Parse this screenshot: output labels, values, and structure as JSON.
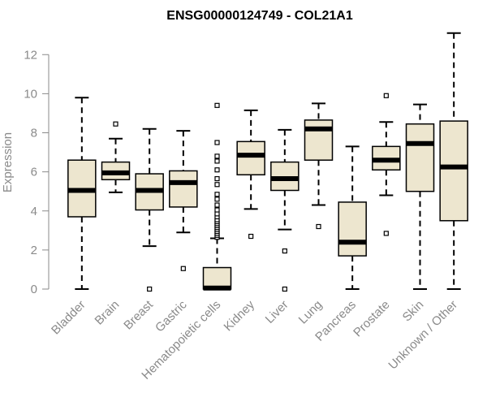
{
  "chart_data": {
    "type": "box",
    "title": "ENSG00000124749 - COL21A1",
    "xlabel": "",
    "ylabel": "Expression",
    "ylim": [
      0,
      13
    ],
    "yticks": [
      0,
      2,
      4,
      6,
      8,
      10,
      12
    ],
    "grid": false,
    "colors": {
      "box_fill": "#ede6cf",
      "box_stroke": "#000000",
      "axis": "#8a8a8a"
    },
    "categories": [
      "Bladder",
      "Brain",
      "Breast",
      "Gastric",
      "Hematopoietic cells",
      "Kidney",
      "Liver",
      "Lung",
      "Pancreas",
      "Prostate",
      "Skin",
      "Unknown / Other"
    ],
    "boxes": [
      {
        "name": "Bladder",
        "whisker_low": 0.0,
        "q1": 3.7,
        "median": 5.05,
        "q3": 6.6,
        "whisker_high": 9.8,
        "outliers": []
      },
      {
        "name": "Brain",
        "whisker_low": 4.95,
        "q1": 5.6,
        "median": 5.95,
        "q3": 6.5,
        "whisker_high": 7.7,
        "outliers": [
          8.45
        ]
      },
      {
        "name": "Breast",
        "whisker_low": 2.2,
        "q1": 4.05,
        "median": 5.05,
        "q3": 5.9,
        "whisker_high": 8.2,
        "outliers": [
          0.0
        ]
      },
      {
        "name": "Gastric",
        "whisker_low": 2.9,
        "q1": 4.2,
        "median": 5.45,
        "q3": 6.05,
        "whisker_high": 8.1,
        "outliers": [
          1.05
        ]
      },
      {
        "name": "Hematopoietic cells",
        "whisker_low": 0.0,
        "q1": 0.0,
        "median": 0.05,
        "q3": 1.1,
        "whisker_high": 2.6,
        "outliers": [
          2.65,
          2.75,
          2.85,
          2.95,
          3.05,
          3.15,
          3.25,
          3.35,
          3.45,
          3.55,
          3.7,
          3.85,
          4.05,
          4.3,
          4.6,
          4.85,
          5.35,
          5.65,
          6.1,
          6.55,
          6.8,
          7.5,
          9.4
        ]
      },
      {
        "name": "Kidney",
        "whisker_low": 4.1,
        "q1": 5.85,
        "median": 6.85,
        "q3": 7.55,
        "whisker_high": 9.15,
        "outliers": [
          2.7
        ]
      },
      {
        "name": "Liver",
        "whisker_low": 3.05,
        "q1": 5.05,
        "median": 5.65,
        "q3": 6.5,
        "whisker_high": 8.15,
        "outliers": [
          1.95,
          0.0
        ]
      },
      {
        "name": "Lung",
        "whisker_low": 4.3,
        "q1": 6.6,
        "median": 8.2,
        "q3": 8.65,
        "whisker_high": 9.5,
        "outliers": [
          3.2
        ]
      },
      {
        "name": "Pancreas",
        "whisker_low": 0.0,
        "q1": 1.7,
        "median": 2.4,
        "q3": 4.45,
        "whisker_high": 7.3,
        "outliers": []
      },
      {
        "name": "Prostate",
        "whisker_low": 4.8,
        "q1": 6.1,
        "median": 6.6,
        "q3": 7.3,
        "whisker_high": 8.55,
        "outliers": [
          9.9,
          2.85
        ]
      },
      {
        "name": "Skin",
        "whisker_low": 0.0,
        "q1": 5.0,
        "median": 7.45,
        "q3": 8.45,
        "whisker_high": 9.45,
        "outliers": []
      },
      {
        "name": "Unknown / Other",
        "whisker_low": 0.0,
        "q1": 3.5,
        "median": 6.25,
        "q3": 8.6,
        "whisker_high": 13.1,
        "outliers": []
      }
    ]
  }
}
